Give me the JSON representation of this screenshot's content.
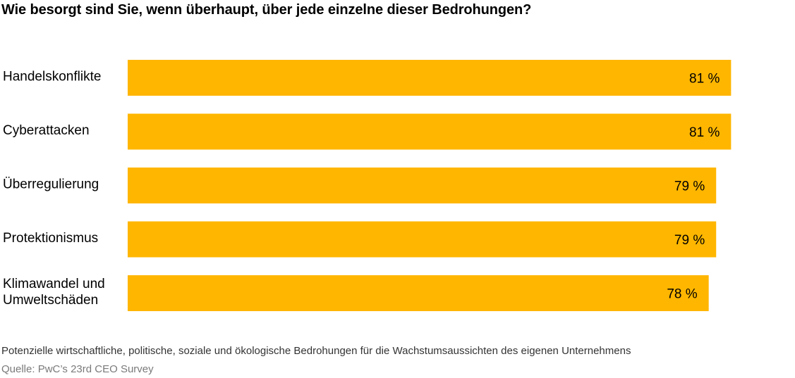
{
  "colors": {
    "bar": "#FFB600",
    "text": "#000000",
    "footnote": "#333333",
    "source": "#7a7a7a"
  },
  "footnote": "Potenzielle wirtschaftliche, politische, soziale und ökologische Bedrohungen für die Wachstumsaussichten des eigenen Unternehmens",
  "source": "Quelle: PwC’s 23rd CEO Survey",
  "chart_data": {
    "type": "bar",
    "orientation": "horizontal",
    "title": "Wie besorgt sind Sie, wenn überhaupt, über jede einzelne dieser Bedrohungen?",
    "categories": [
      [
        "Handelskonflikte"
      ],
      [
        "Cyberattacken"
      ],
      [
        "Überregulierung"
      ],
      [
        "Protektionismus"
      ],
      [
        "Klimawandel und",
        "Umweltschäden"
      ]
    ],
    "values": [
      81,
      81,
      79,
      79,
      78
    ],
    "value_labels": [
      "81 %",
      "81 %",
      "79 %",
      "79 %",
      "78 %"
    ],
    "unit": "%",
    "xlim": [
      0,
      100
    ],
    "grid": false,
    "legend": "none"
  }
}
